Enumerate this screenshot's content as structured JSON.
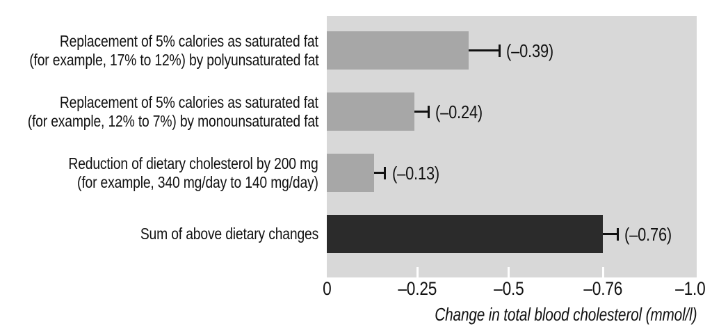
{
  "chart_data": {
    "type": "bar",
    "orientation": "horizontal",
    "xlabel": "Change in total blood cholesterol (mmol/l)",
    "xlim": [
      0,
      -1.0
    ],
    "x_ticks": [
      0,
      -0.25,
      -0.5,
      -0.76,
      -1.0
    ],
    "x_tick_labels": [
      "0",
      "–0.25",
      "–0.5",
      "–0.76",
      "–1.0"
    ],
    "ticks_with_mark": [
      "-0.25",
      "-0.5",
      "-0.76"
    ],
    "categories": [
      {
        "lines": [
          "Replacement of 5% calories as saturated fat",
          "(for example, 17% to 12%) by polyunsaturated fat"
        ]
      },
      {
        "lines": [
          "Replacement of 5% calories as saturated fat",
          "(for example, 12% to 7%) by monounsaturated fat"
        ]
      },
      {
        "lines": [
          "Reduction of dietary cholesterol by 200 mg",
          "(for example, 340 mg/day to 140 mg/day)"
        ]
      },
      {
        "lines": [
          "Sum of above dietary changes"
        ]
      }
    ],
    "values": [
      -0.39,
      -0.24,
      -0.13,
      -0.76
    ],
    "error_extents": [
      0.085,
      0.04,
      0.03,
      0.04
    ],
    "value_labels": [
      "(–0.39)",
      "(–0.24)",
      "(–0.13)",
      "(–0.76)"
    ],
    "grid": false,
    "legend_visible": false,
    "colors": {
      "plot_background": "#d8d8d8",
      "bar_fill": "#a7a7a7",
      "sum_bar_fill": "#2b2b2b",
      "error_bar": "#111111",
      "tick_mark": "#ffffff",
      "text": "#111111",
      "page_background": "#ffffff"
    }
  }
}
